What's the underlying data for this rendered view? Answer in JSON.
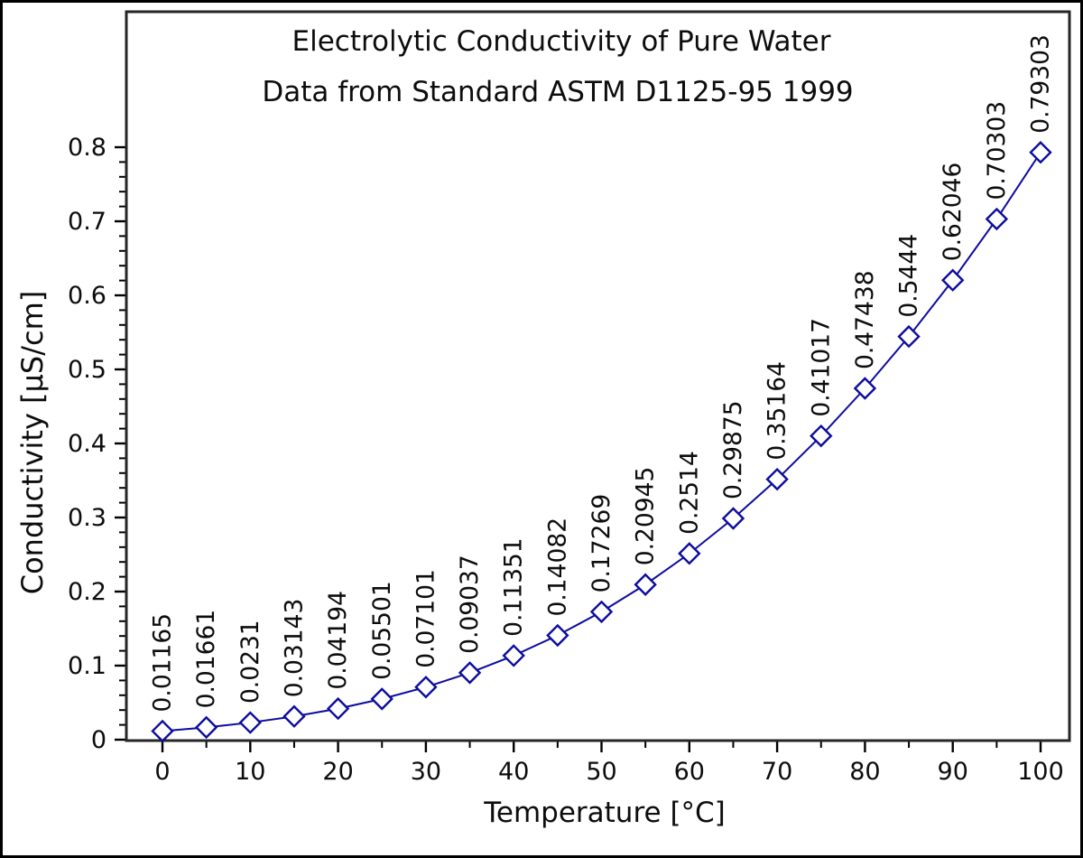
{
  "frame": {
    "background": "#ffffff",
    "border_color": "#000000"
  },
  "chart_data": {
    "type": "line",
    "title": "Electrolytic Conductivity of Pure Water",
    "subtitle": "Data from Standard ASTM D1125-95 1999",
    "xlabel": "Temperature [°C]",
    "ylabel": "Conductivity [μS/cm]",
    "x": [
      0,
      5,
      10,
      15,
      20,
      25,
      30,
      35,
      40,
      45,
      50,
      55,
      60,
      65,
      70,
      75,
      80,
      85,
      90,
      95,
      100
    ],
    "y": [
      0.01165,
      0.01661,
      0.0231,
      0.03143,
      0.04194,
      0.05501,
      0.07101,
      0.09037,
      0.11351,
      0.14082,
      0.17269,
      0.20945,
      0.2514,
      0.29875,
      0.35164,
      0.41017,
      0.47438,
      0.5444,
      0.62046,
      0.70303,
      0.79303
    ],
    "point_labels": [
      "0.01165",
      "0.01661",
      "0.0231",
      "0.03143",
      "0.04194",
      "0.05501",
      "0.07101",
      "0.09037",
      "0.11351",
      "0.14082",
      "0.17269",
      "0.20945",
      "0.2514",
      "0.29875",
      "0.35164",
      "0.41017",
      "0.47438",
      "0.5444",
      "0.62046",
      "0.70303",
      "0.79303"
    ],
    "xlim": [
      0,
      100
    ],
    "ylim": [
      0,
      0.8
    ],
    "x_major_ticks": [
      0,
      10,
      20,
      30,
      40,
      50,
      60,
      70,
      80,
      90,
      100
    ],
    "x_major_tick_labels": [
      "0",
      "10",
      "20",
      "30",
      "40",
      "50",
      "60",
      "70",
      "80",
      "90",
      "100"
    ],
    "x_minor_ticks": [
      5,
      15,
      25,
      35,
      45,
      55,
      65,
      75,
      85,
      95
    ],
    "y_major_ticks": [
      0,
      0.1,
      0.2,
      0.3,
      0.4,
      0.5,
      0.6,
      0.7,
      0.8
    ],
    "y_major_tick_labels": [
      "0",
      "0.1",
      "0.2",
      "0.3",
      "0.4",
      "0.5",
      "0.6",
      "0.7",
      "0.8"
    ],
    "y_minor_step": 0.02,
    "grid": false,
    "legend": null,
    "marker": "open-diamond",
    "series_color": "#0c0c9e",
    "marker_fill": "#ffffff",
    "axis_color": "#262626",
    "tick_color": "#000000",
    "text_color": "#0d0d0d"
  }
}
